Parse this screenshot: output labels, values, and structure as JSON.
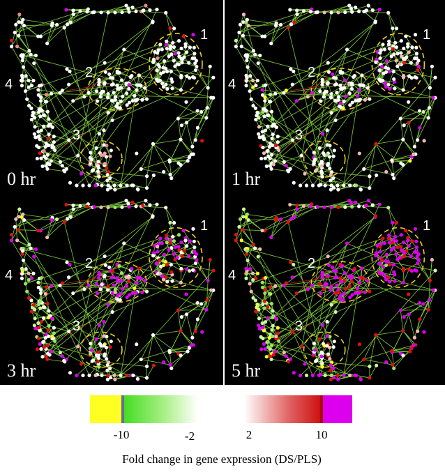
{
  "panels": [
    {
      "time_label": "0 hr",
      "cluster_labels": [
        "1",
        "2",
        "3",
        "4"
      ],
      "level": 0.0
    },
    {
      "time_label": "1 hr",
      "cluster_labels": [
        "1",
        "2",
        "3",
        "4"
      ],
      "level": 0.12
    },
    {
      "time_label": "3 hr",
      "cluster_labels": [
        "1",
        "2",
        "3",
        "4"
      ],
      "level": 0.5
    },
    {
      "time_label": "5 hr",
      "cluster_labels": [
        "1",
        "2",
        "3",
        "4"
      ],
      "level": 0.9
    }
  ],
  "colorbar": {
    "ticks": [
      "-10",
      "-2",
      "2",
      "10"
    ],
    "caption": "Fold change in gene expression (DS/PLS)",
    "colors": {
      "low_saturated": "#ffff22",
      "low": "#55e022",
      "neutral": "#ffffff",
      "high": "#dd1111",
      "high_saturated": "#dd00ee"
    }
  },
  "colors": {
    "background": "#000000",
    "edge": "#7fcf3a",
    "edge_red": "#c01818",
    "ring": "#f0d020",
    "node_default": "#ffffff"
  }
}
